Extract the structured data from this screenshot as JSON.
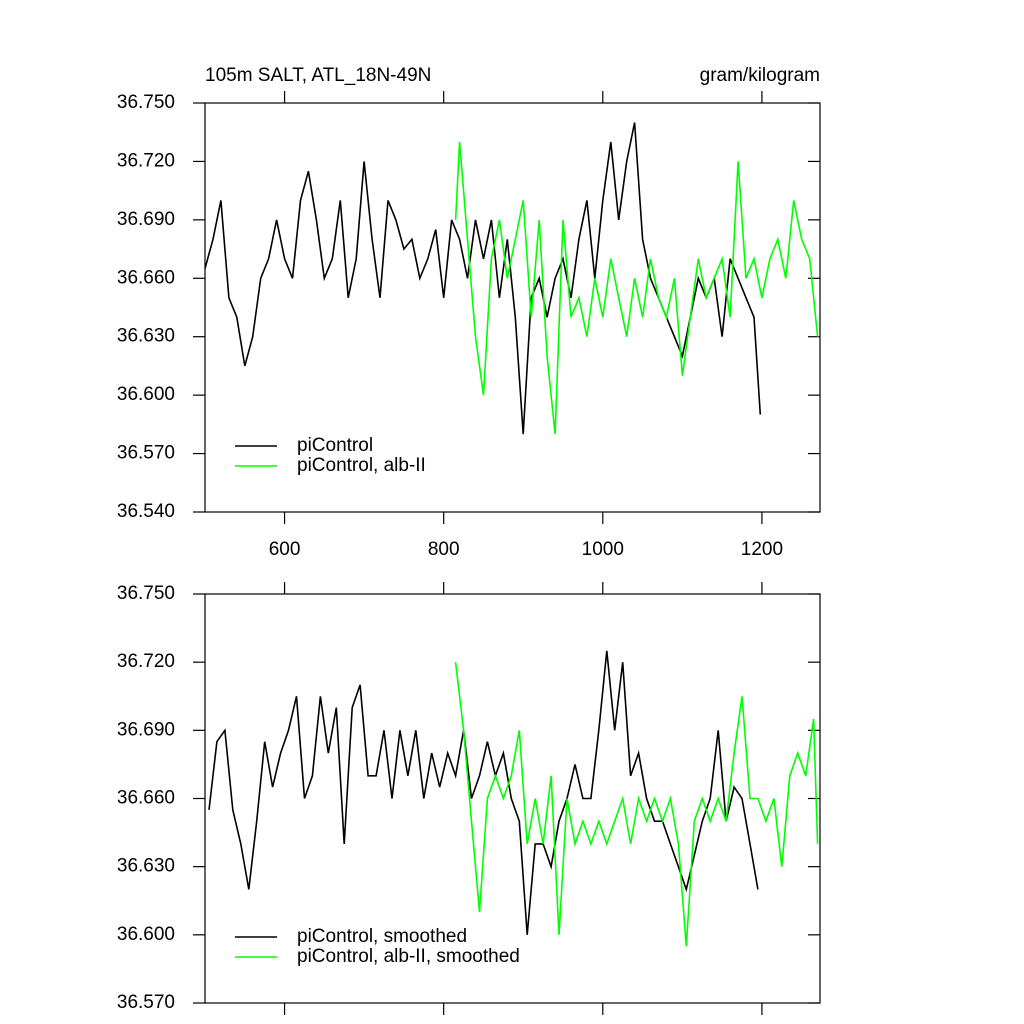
{
  "chart_data": [
    {
      "type": "line",
      "title": "105m SALT, ATL_18N-49N",
      "subtitle": "gram/kilogram",
      "xlim": [
        500,
        1273
      ],
      "xticks": [
        600,
        800,
        1000,
        1200
      ],
      "xtick_labels": true,
      "ylim": [
        36.54,
        36.75
      ],
      "yticks": [
        {
          "value": 36.54,
          "label": "36.540"
        },
        {
          "value": 36.57,
          "label": "36.570"
        },
        {
          "value": 36.6,
          "label": "36.600"
        },
        {
          "value": 36.63,
          "label": "36.630"
        },
        {
          "value": 36.66,
          "label": "36.660"
        },
        {
          "value": 36.69,
          "label": "36.690"
        },
        {
          "value": 36.72,
          "label": "36.720"
        },
        {
          "value": 36.75,
          "label": "36.750"
        }
      ],
      "legend": "lower left",
      "series": [
        {
          "name": "piControl",
          "color": "#000000",
          "x": [
            500,
            510,
            520,
            530,
            540,
            550,
            560,
            570,
            580,
            590,
            600,
            610,
            620,
            630,
            640,
            650,
            660,
            670,
            680,
            690,
            700,
            710,
            720,
            730,
            740,
            750,
            760,
            770,
            780,
            790,
            800,
            810,
            820,
            830,
            840,
            850,
            860,
            870,
            880,
            890,
            900,
            910,
            920,
            930,
            940,
            950,
            960,
            970,
            980,
            990,
            1000,
            1010,
            1020,
            1030,
            1040,
            1050,
            1060,
            1070,
            1080,
            1090,
            1100,
            1110,
            1120,
            1130,
            1140,
            1150,
            1160,
            1170,
            1180,
            1190,
            1198
          ],
          "values": [
            36.665,
            36.68,
            36.7,
            36.65,
            36.64,
            36.615,
            36.63,
            36.66,
            36.67,
            36.69,
            36.67,
            36.66,
            36.7,
            36.715,
            36.69,
            36.66,
            36.67,
            36.7,
            36.65,
            36.67,
            36.72,
            36.68,
            36.65,
            36.7,
            36.69,
            36.675,
            36.68,
            36.66,
            36.67,
            36.685,
            36.65,
            36.69,
            36.68,
            36.66,
            36.69,
            36.67,
            36.69,
            36.65,
            36.68,
            36.64,
            36.58,
            36.65,
            36.66,
            36.64,
            36.66,
            36.67,
            36.65,
            36.68,
            36.7,
            36.66,
            36.7,
            36.73,
            36.69,
            36.72,
            36.74,
            36.68,
            36.66,
            36.65,
            36.64,
            36.63,
            36.62,
            36.64,
            36.66,
            36.65,
            36.66,
            36.63,
            36.67,
            36.66,
            36.65,
            36.64,
            36.59
          ]
        },
        {
          "name": "piControl, alb-II",
          "color": "#00ff00",
          "x": [
            815,
            820,
            830,
            840,
            850,
            860,
            870,
            880,
            890,
            900,
            910,
            920,
            930,
            940,
            950,
            960,
            970,
            980,
            990,
            1000,
            1010,
            1020,
            1030,
            1040,
            1050,
            1060,
            1070,
            1080,
            1090,
            1100,
            1110,
            1120,
            1130,
            1140,
            1150,
            1160,
            1170,
            1180,
            1190,
            1200,
            1210,
            1220,
            1230,
            1240,
            1250,
            1260,
            1270
          ],
          "values": [
            36.69,
            36.73,
            36.68,
            36.63,
            36.6,
            36.67,
            36.69,
            36.66,
            36.68,
            36.7,
            36.64,
            36.69,
            36.62,
            36.58,
            36.69,
            36.64,
            36.65,
            36.63,
            36.66,
            36.64,
            36.67,
            36.65,
            36.63,
            36.66,
            36.64,
            36.67,
            36.65,
            36.64,
            36.66,
            36.61,
            36.64,
            36.67,
            36.65,
            36.66,
            36.67,
            36.64,
            36.72,
            36.66,
            36.67,
            36.65,
            36.67,
            36.68,
            36.66,
            36.7,
            36.68,
            36.67,
            36.63
          ]
        }
      ]
    },
    {
      "type": "line",
      "xlim": [
        500,
        1273
      ],
      "xticks": [
        600,
        800,
        1000,
        1200
      ],
      "xtick_labels": false,
      "ylim": [
        36.57,
        36.75
      ],
      "yticks": [
        {
          "value": 36.57,
          "label": "36.570"
        },
        {
          "value": 36.6,
          "label": "36.600"
        },
        {
          "value": 36.63,
          "label": "36.630"
        },
        {
          "value": 36.66,
          "label": "36.660"
        },
        {
          "value": 36.69,
          "label": "36.690"
        },
        {
          "value": 36.72,
          "label": "36.720"
        },
        {
          "value": 36.75,
          "label": "36.750"
        }
      ],
      "legend": "lower left",
      "series": [
        {
          "name": "piControl, smoothed",
          "color": "#000000",
          "x": [
            505,
            515,
            525,
            535,
            545,
            555,
            565,
            575,
            585,
            595,
            605,
            615,
            625,
            635,
            645,
            655,
            665,
            675,
            685,
            695,
            705,
            715,
            725,
            735,
            745,
            755,
            765,
            775,
            785,
            795,
            805,
            815,
            825,
            835,
            845,
            855,
            865,
            875,
            885,
            895,
            905,
            915,
            925,
            935,
            945,
            955,
            965,
            975,
            985,
            995,
            1005,
            1015,
            1025,
            1035,
            1045,
            1055,
            1065,
            1075,
            1085,
            1095,
            1105,
            1115,
            1125,
            1135,
            1145,
            1155,
            1165,
            1175,
            1185,
            1195
          ],
          "values": [
            36.655,
            36.685,
            36.69,
            36.655,
            36.64,
            36.62,
            36.65,
            36.685,
            36.665,
            36.68,
            36.69,
            36.705,
            36.66,
            36.67,
            36.705,
            36.68,
            36.7,
            36.64,
            36.7,
            36.71,
            36.67,
            36.67,
            36.69,
            36.66,
            36.69,
            36.67,
            36.69,
            36.66,
            36.68,
            36.665,
            36.68,
            36.67,
            36.69,
            36.66,
            36.67,
            36.685,
            36.67,
            36.68,
            36.66,
            36.65,
            36.6,
            36.64,
            36.64,
            36.63,
            36.65,
            36.66,
            36.675,
            36.66,
            36.66,
            36.69,
            36.725,
            36.69,
            36.72,
            36.67,
            36.68,
            36.66,
            36.65,
            36.65,
            36.64,
            36.63,
            36.62,
            36.635,
            36.65,
            36.66,
            36.69,
            36.65,
            36.665,
            36.66,
            36.64,
            36.62
          ]
        },
        {
          "name": "piControl, alb-II, smoothed",
          "color": "#00ff00",
          "x": [
            815,
            825,
            835,
            845,
            855,
            865,
            875,
            885,
            895,
            905,
            915,
            925,
            935,
            945,
            955,
            965,
            975,
            985,
            995,
            1005,
            1015,
            1025,
            1035,
            1045,
            1055,
            1065,
            1075,
            1085,
            1095,
            1105,
            1115,
            1125,
            1135,
            1145,
            1155,
            1165,
            1175,
            1185,
            1195,
            1205,
            1215,
            1225,
            1235,
            1245,
            1255,
            1265,
            1270
          ],
          "values": [
            36.72,
            36.69,
            36.65,
            36.61,
            36.66,
            36.67,
            36.66,
            36.67,
            36.69,
            36.64,
            36.66,
            36.64,
            36.67,
            36.6,
            36.66,
            36.64,
            36.65,
            36.64,
            36.65,
            36.64,
            36.65,
            36.66,
            36.64,
            36.66,
            36.65,
            36.66,
            36.65,
            36.66,
            36.64,
            36.595,
            36.65,
            36.66,
            36.65,
            36.66,
            36.65,
            36.68,
            36.705,
            36.66,
            36.66,
            36.65,
            36.66,
            36.63,
            36.67,
            36.68,
            36.67,
            36.695,
            36.64
          ]
        }
      ]
    }
  ]
}
